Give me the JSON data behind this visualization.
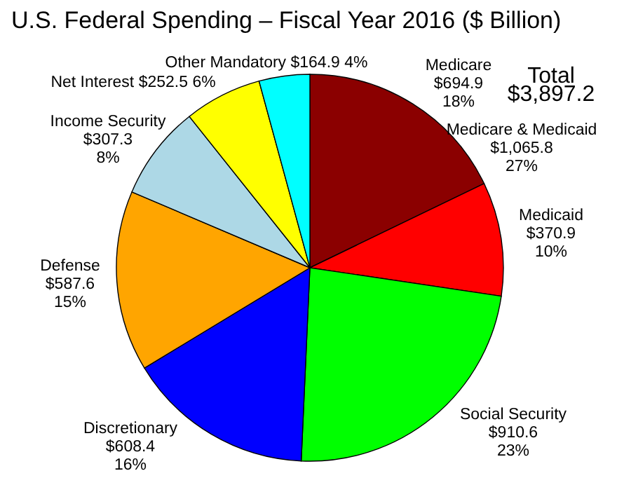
{
  "chart_data": {
    "type": "pie",
    "title": "U.S. Federal Spending – Fiscal Year 2016 ($ Billion)",
    "categories": [
      "Medicare",
      "Medicaid",
      "Social Security",
      "Discretionary",
      "Defense",
      "Income Security",
      "Net Interest",
      "Other Mandatory"
    ],
    "values": [
      694.9,
      370.9,
      910.6,
      608.4,
      587.6,
      307.3,
      252.5,
      164.9
    ],
    "colors": [
      "#8b0000",
      "#ff0000",
      "#00ff00",
      "#0000ff",
      "#ffa500",
      "#add8e6",
      "#ffff00",
      "#00ffff"
    ],
    "value_labels": [
      "$694.9 18%",
      "$370.9 10%",
      "$910.6 23%",
      "$608.4 16%",
      "$587.6 15%",
      "$307.3 8%",
      "$252.5 6%",
      "$164.9 4%"
    ],
    "annotations": [
      "Total $3,897.2",
      "Medicare & Medicaid $1,065.8 27%"
    ]
  }
}
